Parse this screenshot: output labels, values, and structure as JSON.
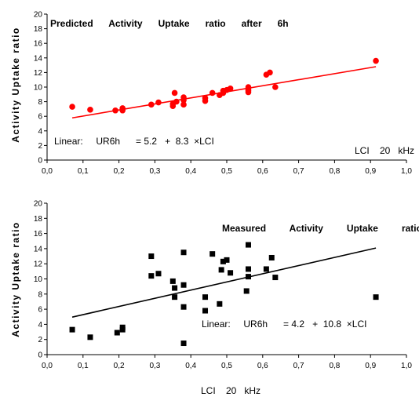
{
  "chart_data": [
    {
      "type": "scatter",
      "title": "Predicted      Activity      Uptake      ratio      after      6h",
      "ylabel": "Activity Uptake ratio",
      "xlabel": "",
      "x_annotation": "LCI    20   kHz",
      "equation": "Linear:     UR6h      = 5.2   +  8.3  ×LCI",
      "xlim": [
        0.0,
        1.0
      ],
      "ylim": [
        0,
        20
      ],
      "x_ticks": [
        "0,0",
        "0,1",
        "0,2",
        "0,3",
        "0,4",
        "0,5",
        "0,6",
        "0,7",
        "0,8",
        "0,9",
        "1,0"
      ],
      "y_ticks": [
        "0",
        "2",
        "4",
        "6",
        "8",
        "10",
        "12",
        "14",
        "16",
        "18",
        "20"
      ],
      "grid": false,
      "marker": "circle",
      "color": "#ff0000",
      "series": [
        {
          "x": [
            0.07,
            0.12,
            0.19,
            0.21,
            0.21,
            0.29,
            0.31,
            0.35,
            0.35,
            0.355,
            0.36,
            0.38,
            0.38,
            0.38,
            0.44,
            0.44,
            0.46,
            0.48,
            0.49,
            0.49,
            0.5,
            0.51,
            0.56,
            0.56,
            0.56,
            0.56,
            0.61,
            0.62,
            0.635,
            0.915
          ],
          "y": [
            7.3,
            6.9,
            6.8,
            6.8,
            7.1,
            7.6,
            7.9,
            7.4,
            7.7,
            9.2,
            8.0,
            7.6,
            8.2,
            8.6,
            8.1,
            8.5,
            9.2,
            8.9,
            9.2,
            9.5,
            9.6,
            9.8,
            9.3,
            9.5,
            9.7,
            10.0,
            11.7,
            12.0,
            10.0,
            13.6
          ]
        }
      ],
      "fit": {
        "intercept": 5.2,
        "slope": 8.3,
        "x_range": [
          0.07,
          0.915
        ],
        "color": "#ff0000"
      }
    },
    {
      "type": "scatter",
      "title": "Measured         Activity         Uptake         ratio",
      "ylabel": "Activity Uptake ratio",
      "xlabel": "LCI    20   kHz",
      "equation": "Linear:     UR6h      = 4.2   +  10.8  ×LCI",
      "xlim": [
        0.0,
        1.0
      ],
      "ylim": [
        0,
        20
      ],
      "x_ticks": [
        "0,0",
        "0,1",
        "0,2",
        "0,3",
        "0,4",
        "0,5",
        "0,6",
        "0,7",
        "0,8",
        "0,9",
        "1,0"
      ],
      "y_ticks": [
        "0",
        "2",
        "4",
        "6",
        "8",
        "10",
        "12",
        "14",
        "16",
        "18",
        "20"
      ],
      "grid": false,
      "marker": "square",
      "color": "#000000",
      "series": [
        {
          "x": [
            0.07,
            0.12,
            0.195,
            0.21,
            0.21,
            0.29,
            0.29,
            0.31,
            0.35,
            0.355,
            0.355,
            0.38,
            0.38,
            0.38,
            0.38,
            0.44,
            0.44,
            0.46,
            0.48,
            0.485,
            0.49,
            0.5,
            0.51,
            0.555,
            0.56,
            0.56,
            0.56,
            0.61,
            0.625,
            0.635,
            0.915
          ],
          "y": [
            3.3,
            2.3,
            2.9,
            3.3,
            3.6,
            13.0,
            10.4,
            10.7,
            9.7,
            8.8,
            7.6,
            13.5,
            9.2,
            6.3,
            1.5,
            7.6,
            5.8,
            13.3,
            6.7,
            11.2,
            12.3,
            12.5,
            10.8,
            8.4,
            10.3,
            11.3,
            14.5,
            11.3,
            12.8,
            10.2,
            7.6
          ]
        }
      ],
      "fit": {
        "intercept": 4.2,
        "slope": 10.8,
        "x_range": [
          0.07,
          0.915
        ],
        "color": "#000000"
      }
    }
  ]
}
